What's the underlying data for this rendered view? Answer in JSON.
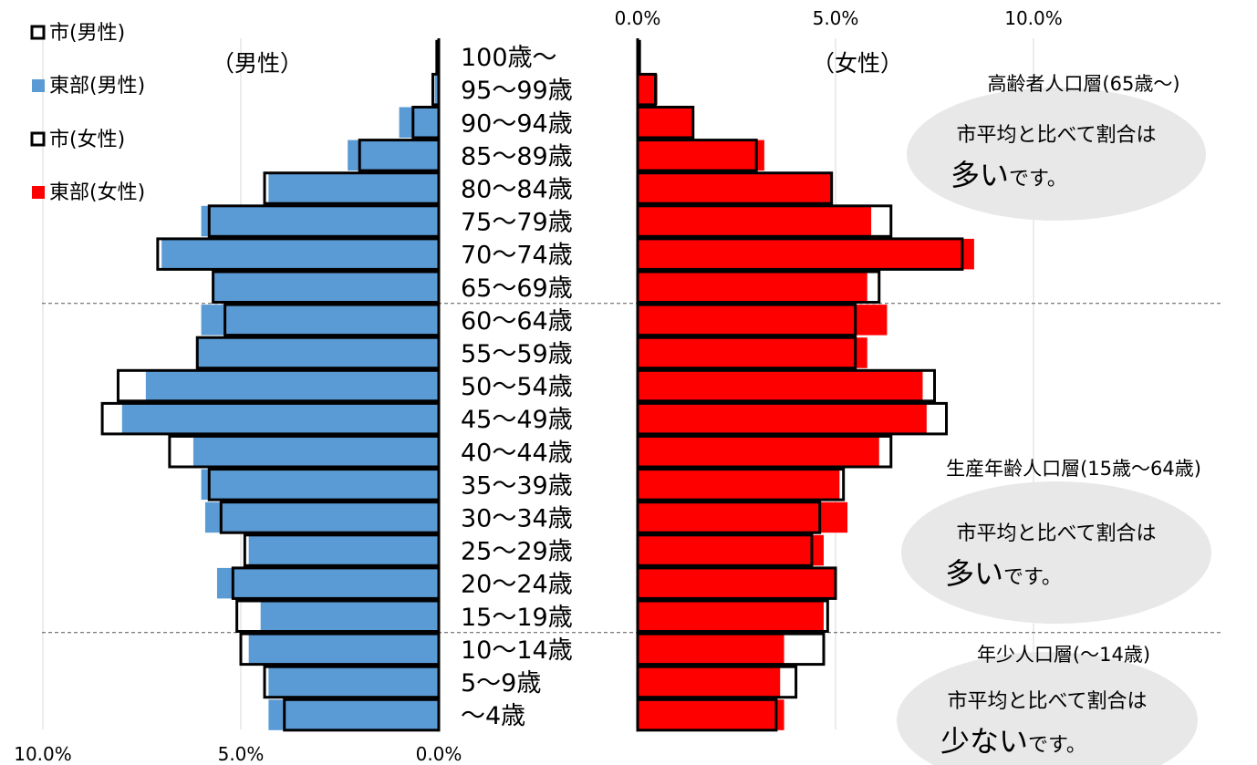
{
  "chart_data": {
    "type": "bar",
    "subtype": "population-pyramid",
    "xlim": [
      0,
      10
    ],
    "x_unit": "%",
    "x_ticks_male": [
      "10.0%",
      "5.0%",
      "0.0%"
    ],
    "x_ticks_female": [
      "0.0%",
      "5.0%",
      "10.0%"
    ],
    "male_side_label": "（男性）",
    "female_side_label": "（女性）",
    "legend": [
      {
        "key": "city_male",
        "label": "市(男性)",
        "color": "#ffffff",
        "border": "#000000"
      },
      {
        "key": "east_male",
        "label": "東部(男性)",
        "color": "#5b9bd5"
      },
      {
        "key": "city_female",
        "label": "市(女性)",
        "color": "#ffffff",
        "border": "#000000"
      },
      {
        "key": "east_female",
        "label": "東部(女性)",
        "color": "#ff0000"
      }
    ],
    "categories": [
      "100歳～",
      "95～99歳",
      "90～94歳",
      "85～89歳",
      "80～84歳",
      "75～79歳",
      "70～74歳",
      "65～69歳",
      "60～64歳",
      "55～59歳",
      "50～54歳",
      "45～49歳",
      "40～44歳",
      "35～39歳",
      "30～34歳",
      "25～29歳",
      "20～24歳",
      "15～19歳",
      "10～14歳",
      "5～9歳",
      "～4歳"
    ],
    "series": [
      {
        "name": "東部(男性)",
        "key": "east_male",
        "values": [
          0.05,
          0.1,
          1.0,
          2.3,
          4.3,
          6.0,
          7.0,
          5.7,
          6.0,
          6.1,
          7.4,
          8.0,
          6.2,
          6.0,
          5.9,
          4.8,
          5.6,
          4.5,
          4.8,
          4.3,
          4.3
        ]
      },
      {
        "name": "市(男性)",
        "key": "city_male",
        "values": [
          0.05,
          0.15,
          0.65,
          2.0,
          4.4,
          5.8,
          7.1,
          5.7,
          5.4,
          6.1,
          8.1,
          8.5,
          6.8,
          5.8,
          5.5,
          4.9,
          5.2,
          5.1,
          5.0,
          4.4,
          3.9
        ]
      },
      {
        "name": "東部(女性)",
        "key": "east_female",
        "values": [
          0.05,
          0.5,
          1.4,
          3.2,
          4.9,
          5.9,
          8.5,
          5.8,
          6.3,
          5.8,
          7.2,
          7.3,
          6.1,
          5.1,
          5.3,
          4.7,
          5.0,
          4.7,
          3.7,
          3.6,
          3.7
        ]
      },
      {
        "name": "市(女性)",
        "key": "city_female",
        "values": [
          0.05,
          0.45,
          1.4,
          3.0,
          4.9,
          6.4,
          8.2,
          6.1,
          5.5,
          5.5,
          7.5,
          7.8,
          6.4,
          5.2,
          4.6,
          4.4,
          5.0,
          4.8,
          4.7,
          4.0,
          3.5
        ]
      }
    ],
    "dividers_after": [
      "65～69歳",
      "15～19歳"
    ]
  },
  "annotations": [
    {
      "title": "高齢者人口層(65歳～)",
      "line1": "市平均と比べて割合は",
      "emph": "多い",
      "tail": "です。"
    },
    {
      "title": "生産年齢人口層(15歳～64歳)",
      "line1": "市平均と比べて割合は",
      "emph": "多い",
      "tail": "です。"
    },
    {
      "title": "年少人口層(～14歳)",
      "line1": "市平均と比べて割合は",
      "emph": "少ない",
      "tail": "です。"
    }
  ]
}
